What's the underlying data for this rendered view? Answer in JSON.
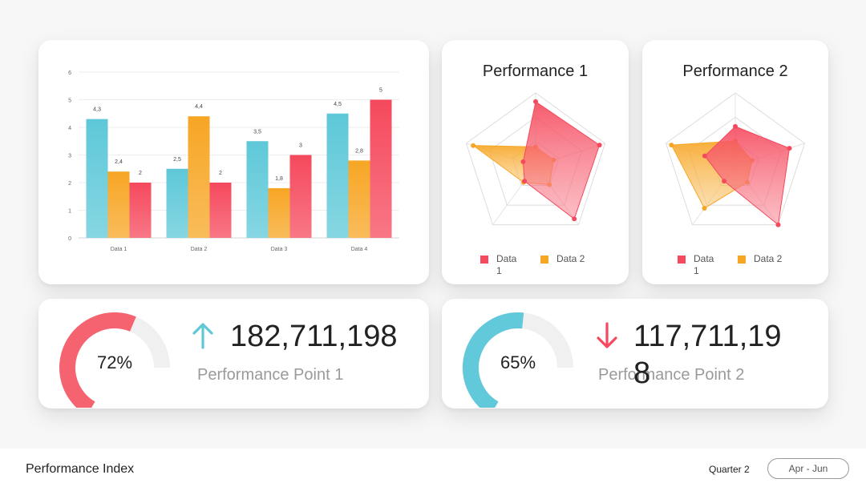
{
  "colors": {
    "teal": "#5ec8d8",
    "orange": "#f7a624",
    "red": "#f5495d",
    "gauge_red": "#f56270",
    "gauge_teal": "#62c9db",
    "track": "#f0f0f0"
  },
  "chart_data": [
    {
      "type": "bar",
      "categories": [
        "Data 1",
        "Data 2",
        "Data 3",
        "Data 4"
      ],
      "series": [
        {
          "values": [
            4.3,
            2.5,
            3.5,
            4.5
          ],
          "labels": [
            "4,3",
            "2,5",
            "3,5",
            "4,5"
          ],
          "color": "#5ec8d8"
        },
        {
          "values": [
            2.4,
            4.4,
            1.8,
            2.8
          ],
          "labels": [
            "2,4",
            "4,4",
            "1,8",
            "2,8"
          ],
          "color": "#f7a624"
        },
        {
          "values": [
            2,
            2,
            3,
            5
          ],
          "labels": [
            "2",
            "2",
            "3",
            "5"
          ],
          "color": "#f5495d"
        }
      ],
      "ylim": [
        0,
        6
      ],
      "yticks": [
        "0",
        "1",
        "2",
        "3",
        "4",
        "5",
        "6"
      ],
      "grid": true
    },
    {
      "type": "radar",
      "title": "Performance 1",
      "axes_count": 5,
      "max": 5,
      "series": [
        {
          "name": "Data 1",
          "values": [
            4.4,
            4.6,
            4.5,
            1.3,
            0.9
          ],
          "color": "#f5495d"
        },
        {
          "name": "Data 2",
          "values": [
            1.3,
            1.3,
            1.6,
            1.4,
            4.5
          ],
          "color": "#f7a624"
        }
      ],
      "legend": "bottom"
    },
    {
      "type": "radar",
      "title": "Performance 2",
      "axes_count": 5,
      "max": 5,
      "series": [
        {
          "name": "Data 1",
          "values": [
            2.7,
            3.9,
            5.0,
            1.3,
            2.2
          ],
          "color": "#f5495d"
        },
        {
          "name": "Data 2",
          "values": [
            1.7,
            1.2,
            1.4,
            3.6,
            4.6
          ],
          "color": "#f7a624"
        }
      ],
      "legend": "bottom"
    }
  ],
  "kpis": [
    {
      "percent": 72,
      "percent_label": "72%",
      "trend": "up",
      "value": "182,711,198",
      "label": "Performance Point 1",
      "color": "#f56270",
      "arrow_color": "#5ec8d8"
    },
    {
      "percent": 65,
      "percent_label": "65%",
      "trend": "down",
      "value": "117,711,198",
      "label": "Performance Point 2",
      "color": "#62c9db",
      "arrow_color": "#f5495d"
    }
  ],
  "footer": {
    "title": "Performance Index",
    "quarter": "Quarter 2",
    "range": "Apr - Jun"
  }
}
